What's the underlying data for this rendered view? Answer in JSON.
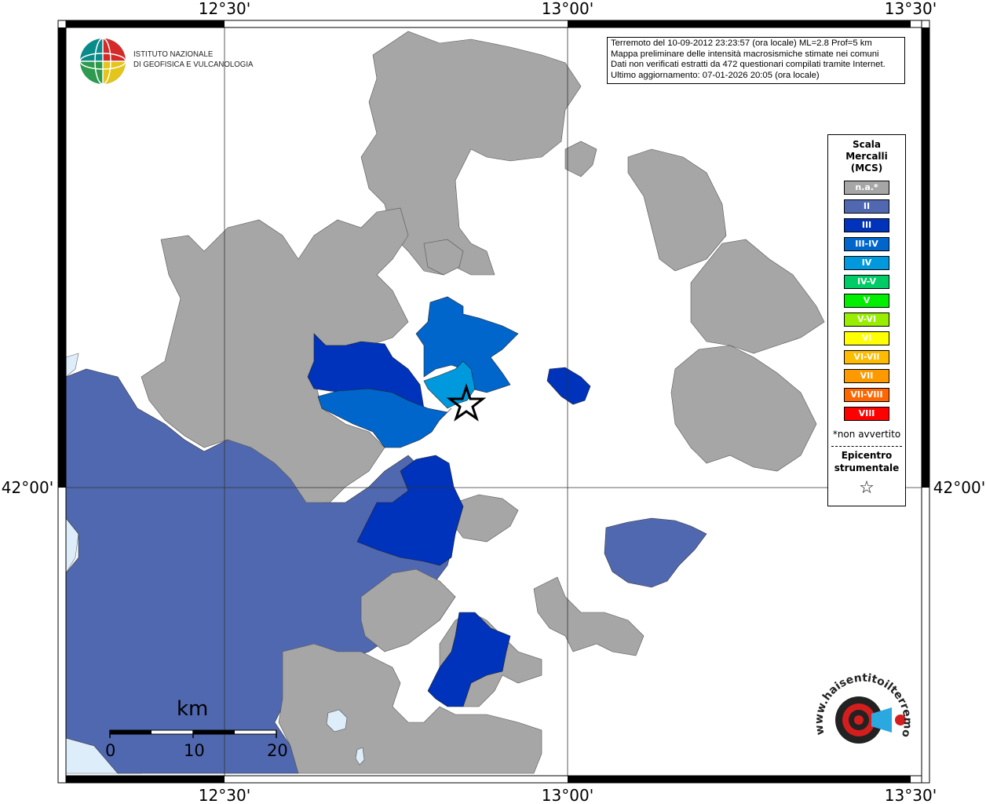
{
  "map": {
    "lon_labels": [
      "12°30'",
      "13°00'",
      "13°30'"
    ],
    "lat_labels": [
      "42°00'",
      "42°00'"
    ]
  },
  "info": {
    "line1": "Terremoto del 10-09-2012 23:23:57 (ora locale) ML=2.8 Prof=5 km",
    "line2": "Mappa preliminare delle intensità macrosismiche stimate nei comuni",
    "line3": "Dati non verificati estratti da 472 questionari compilati tramite Internet.",
    "line4": "Ultimo aggiornamento: 07-01-2026 20:05 (ora locale)"
  },
  "logo": {
    "line1": "ISTITUTO NAZIONALE",
    "line2": "DI GEOFISICA E VULCANOLOGIA"
  },
  "legend": {
    "title1": "Scala",
    "title2": "Mercalli",
    "title3": "(MCS)",
    "items": [
      {
        "label": "n.a.*",
        "color": "#a6a6a6"
      },
      {
        "label": "II",
        "color": "#5068b0"
      },
      {
        "label": "III",
        "color": "#0033bb"
      },
      {
        "label": "III-IV",
        "color": "#0066cc"
      },
      {
        "label": "IV",
        "color": "#0099dd"
      },
      {
        "label": "IV-V",
        "color": "#00cc66"
      },
      {
        "label": "V",
        "color": "#00ee00"
      },
      {
        "label": "V-VI",
        "color": "#99ee00"
      },
      {
        "label": "VI",
        "color": "#ffff00"
      },
      {
        "label": "VI-VII",
        "color": "#ffbb00"
      },
      {
        "label": "VII",
        "color": "#ff9900"
      },
      {
        "label": "VII-VIII",
        "color": "#ff6600"
      },
      {
        "label": "VIII",
        "color": "#ff0000"
      }
    ],
    "note": "*non avvertito",
    "epicenter1": "Epicentro",
    "epicenter2": "strumentale",
    "star": "☆"
  },
  "scalebar": {
    "unit": "km",
    "ticks": [
      "0",
      "10",
      "20"
    ]
  },
  "watermark": {
    "text": "www.haisentitoilterremoto.it"
  },
  "colors": {
    "na": "#a6a6a6",
    "ii": "#5068b0",
    "iii": "#0033bb",
    "iii_iv": "#0066cc",
    "iv": "#0099dd",
    "sea": "#ddeefa"
  }
}
